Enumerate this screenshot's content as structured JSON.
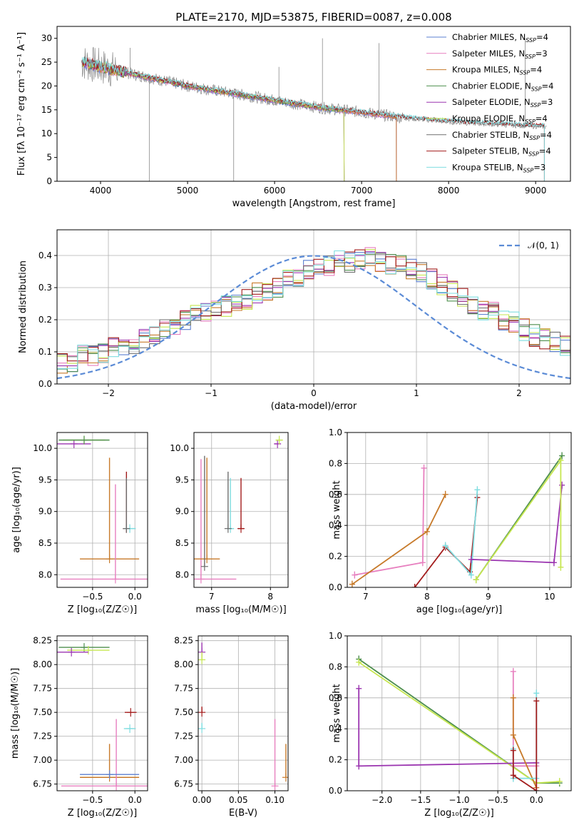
{
  "colors": {
    "chabrier_miles": "#5b7fd0",
    "salpeter_miles": "#e77fbf",
    "kroupa_miles": "#c77a2a",
    "chabrier_elodie": "#4e8f4e",
    "salpeter_elodie": "#9b35b0",
    "kroupa_elodie": "#c6e64f",
    "chabrier_stelib": "#6e6e6e",
    "salpeter_stelib": "#a31c1c",
    "kroupa_stelib": "#7fdde0",
    "gauss": "#5b8bd6",
    "grid": "#b0b0b0"
  },
  "chart_data": [
    {
      "id": "spectrum",
      "type": "line",
      "title": "PLATE=2170, MJD=53875, FIBERID=0087, z=0.008",
      "xlabel": "wavelength [Angstrom, rest frame]",
      "ylabel": "Flux [fλ 10⁻¹⁷ erg cm⁻² s⁻¹ A⁻¹]",
      "xlim": [
        3500,
        9400
      ],
      "ylim": [
        0,
        32.5
      ],
      "xticks": [
        4000,
        5000,
        6000,
        7000,
        8000,
        9000
      ],
      "yticks": [
        0,
        5,
        10,
        15,
        20,
        25,
        30
      ],
      "legend_position": "top-right",
      "legend": [
        "Chabrier MILES, N_SSP=4",
        "Salpeter MILES, N_SSP=3",
        "Kroupa MILES, N_SSP=4",
        "Chabrier ELODIE, N_SSP=4",
        "Salpeter ELODIE, N_SSP=3",
        "Kroupa ELODIE, N_SSP=4",
        "Chabrier STELIB, N_SSP=4",
        "Salpeter STELIB, N_SSP=4",
        "Kroupa STELIB, N_SSP=3"
      ],
      "continuum": {
        "x": [
          3800,
          4000,
          4500,
          5000,
          5500,
          6000,
          6500,
          7000,
          7500,
          8000,
          8500,
          9100
        ],
        "y": [
          25,
          24,
          22,
          20,
          18.5,
          17,
          15.5,
          14.5,
          13.3,
          12.5,
          12,
          11.5
        ]
      },
      "models_end_wavelength": {
        "MILES": 7400,
        "ELODIE": 6800,
        "STELIB": 9100
      },
      "data_spikes": [
        {
          "x": 4560,
          "y": 0
        },
        {
          "x": 5530,
          "y": 0
        },
        {
          "x": 6550,
          "y": 30
        },
        {
          "x": 7200,
          "y": 29
        },
        {
          "x": 6050,
          "y": 24
        },
        {
          "x": 4340,
          "y": 28
        },
        {
          "x": 8880,
          "y": 30
        }
      ]
    },
    {
      "id": "residuals",
      "type": "line",
      "xlabel": "(data-model)/error",
      "ylabel": "Normed distribution",
      "xlim": [
        -2.5,
        2.5
      ],
      "ylim": [
        0,
        0.48
      ],
      "xticks": [
        -2,
        -1,
        0,
        1,
        2
      ],
      "yticks": [
        0.0,
        0.1,
        0.2,
        0.3,
        0.4
      ],
      "legend": [
        "𝒩(0, 1)"
      ],
      "legend_position": "top-right",
      "bin_width": 0.1,
      "hist_base": [
        0.06,
        0.07,
        0.09,
        0.09,
        0.1,
        0.11,
        0.12,
        0.12,
        0.14,
        0.15,
        0.17,
        0.18,
        0.2,
        0.21,
        0.22,
        0.24,
        0.24,
        0.25,
        0.26,
        0.28,
        0.29,
        0.3,
        0.32,
        0.33,
        0.35,
        0.36,
        0.37,
        0.38,
        0.38,
        0.39,
        0.4,
        0.38,
        0.37,
        0.37,
        0.36,
        0.35,
        0.33,
        0.31,
        0.29,
        0.27,
        0.25,
        0.23,
        0.22,
        0.2,
        0.19,
        0.17,
        0.15,
        0.14,
        0.13,
        0.12,
        0.11,
        0.1,
        0.09,
        0.08,
        0.07,
        0.06,
        0.05,
        0.04,
        0.03,
        0.03
      ]
    },
    {
      "id": "age_vs_z",
      "type": "scatter",
      "xlabel": "Z [log₁₀(Z/Z☉)]",
      "ylabel": "age  [log₁₀(age/yr)]",
      "xlim": [
        -0.92,
        0.15
      ],
      "ylim": [
        7.8,
        10.25
      ],
      "xticks": [
        -0.5,
        0.0
      ],
      "yticks": [
        8.0,
        8.5,
        9.0,
        9.5,
        10.0
      ],
      "points": [
        {
          "series": "Salpeter ELODIE",
          "x": -0.72,
          "y": 10.07,
          "xerr": 0.2
        },
        {
          "series": "Kroupa ELODIE",
          "x": -0.6,
          "y": 10.13,
          "xerr": 0.25
        },
        {
          "series": "Chabrier ELODIE",
          "x": -0.6,
          "y": 10.13,
          "xerr": 0.3
        },
        {
          "series": "Kroupa MILES",
          "x": -0.3,
          "y": 8.25,
          "xerr": 0.35,
          "yerr": 1.6
        },
        {
          "series": "Salpeter MILES",
          "x": -0.23,
          "y": 7.93,
          "xerr": 0.65,
          "yerr": 1.5
        },
        {
          "series": "Salpeter STELIB",
          "x": -0.1,
          "y": 8.73,
          "xerr": 0.0,
          "yerr": 0.9
        },
        {
          "series": "Kroupa STELIB",
          "x": -0.06,
          "y": 8.73,
          "xerr": 0.07
        },
        {
          "series": "Chabrier STELIB",
          "x": -0.1,
          "y": 8.73,
          "xerr": 0.0,
          "yerr": 0.8
        }
      ]
    },
    {
      "id": "age_vs_mass",
      "type": "scatter",
      "xlabel": "mass [log₁₀(M/M☉)]",
      "ylabel": "",
      "xlim": [
        6.7,
        8.3
      ],
      "ylim": [
        7.8,
        10.25
      ],
      "xticks": [
        7,
        8
      ],
      "yticks": [
        8.0,
        8.5,
        9.0,
        9.5,
        10.0
      ],
      "points": [
        {
          "series": "Salpeter MILES",
          "x": 6.82,
          "y": 7.93,
          "xerr": 0.6,
          "yerr": 1.9
        },
        {
          "series": "Kroupa MILES",
          "x": 6.92,
          "y": 8.25,
          "xerr": 0.22,
          "yerr": 1.6
        },
        {
          "series": "Chabrier STELIB",
          "x": 6.88,
          "y": 8.13,
          "xerr": 0.0,
          "yerr": 1.75
        },
        {
          "series": "Kroupa STELIB",
          "x": 7.32,
          "y": 8.73,
          "xerr": 0.06,
          "yerr": 0.8
        },
        {
          "series": "Chabrier STELIB 2",
          "x": 7.28,
          "y": 8.73,
          "xerr": 0.0,
          "yerr": 0.9
        },
        {
          "series": "Salpeter STELIB",
          "x": 7.5,
          "y": 8.73,
          "xerr": 0.05,
          "yerr": 0.8
        },
        {
          "series": "Salpeter ELODIE",
          "x": 8.12,
          "y": 10.07,
          "xerr": 0.05
        },
        {
          "series": "Kroupa ELODIE",
          "x": 8.15,
          "y": 10.13,
          "xerr": 0.06
        }
      ]
    },
    {
      "id": "weight_vs_age",
      "type": "line",
      "xlabel": "age  [log₁₀(age/yr)]",
      "ylabel": "mass weight",
      "xlim": [
        6.7,
        10.35
      ],
      "ylim": [
        0,
        1.0
      ],
      "xticks": [
        7,
        8,
        9,
        10
      ],
      "yticks": [
        0.0,
        0.2,
        0.4,
        0.6,
        0.8,
        1.0
      ],
      "series": [
        {
          "name": "Salpeter MILES",
          "x": [
            6.82,
            7.93,
            7.95
          ],
          "y": [
            0.08,
            0.16,
            0.77
          ]
        },
        {
          "name": "Kroupa MILES",
          "x": [
            6.78,
            8.0,
            8.3
          ],
          "y": [
            0.02,
            0.36,
            0.6
          ]
        },
        {
          "name": "Salpeter STELIB",
          "x": [
            7.8,
            8.3,
            8.7,
            8.82
          ],
          "y": [
            0.0,
            0.26,
            0.1,
            0.58
          ]
        },
        {
          "name": "Kroupa STELIB",
          "x": [
            8.3,
            8.72,
            8.82
          ],
          "y": [
            0.27,
            0.08,
            0.63
          ]
        },
        {
          "name": "Salpeter ELODIE",
          "x": [
            8.72,
            10.07,
            10.2
          ],
          "y": [
            0.18,
            0.16,
            0.66
          ]
        },
        {
          "name": "Chabrier ELODIE",
          "x": [
            8.8,
            10.2
          ],
          "y": [
            0.05,
            0.85
          ]
        },
        {
          "name": "Kroupa ELODIE",
          "x": [
            8.8,
            10.18,
            10.18
          ],
          "y": [
            0.05,
            0.82,
            0.13
          ]
        }
      ]
    },
    {
      "id": "mass_vs_z",
      "type": "scatter",
      "xlabel": "Z [log₁₀(Z/Z☉)]",
      "ylabel": "mass [log₁₀(M/M☉)]",
      "xlim": [
        -0.92,
        0.15
      ],
      "ylim": [
        6.68,
        8.3
      ],
      "xticks": [
        -0.5,
        0.0
      ],
      "yticks": [
        6.75,
        7.0,
        7.25,
        7.5,
        7.75,
        8.0,
        8.25
      ],
      "points": [
        {
          "series": "Chabrier ELODIE",
          "x": -0.6,
          "y": 8.18,
          "xerr": 0.3
        },
        {
          "series": "Kroupa ELODIE",
          "x": -0.55,
          "y": 8.15,
          "xerr": 0.25
        },
        {
          "series": "Salpeter ELODIE",
          "x": -0.75,
          "y": 8.13,
          "xerr": 0.2
        },
        {
          "series": "Salpeter STELIB",
          "x": -0.05,
          "y": 7.5,
          "xerr": 0.07
        },
        {
          "series": "Kroupa STELIB",
          "x": -0.06,
          "y": 7.33,
          "xerr": 0.07
        },
        {
          "series": "Kroupa MILES",
          "x": -0.3,
          "y": 6.82,
          "xerr": 0.35,
          "yerr": 0.35
        },
        {
          "series": "Salpeter MILES",
          "x": -0.22,
          "y": 6.73,
          "xerr": 0.65,
          "yerr": 0.7
        },
        {
          "series": "Chabrier MILES",
          "x": -0.3,
          "y": 6.85,
          "xerr": 0.35
        }
      ]
    },
    {
      "id": "mass_vs_ebv",
      "type": "scatter",
      "xlabel": "E(B-V)",
      "ylabel": "",
      "xlim": [
        -0.005,
        0.118
      ],
      "ylim": [
        6.68,
        8.3
      ],
      "xticks": [
        0.0,
        0.05,
        0.1
      ],
      "yticks": [
        6.75,
        7.0,
        7.25,
        7.5,
        7.75,
        8.0,
        8.25
      ],
      "points": [
        {
          "series": "Salpeter ELODIE",
          "x": 0.0,
          "y": 8.13,
          "yerr": 0.1
        },
        {
          "series": "Kroupa ELODIE",
          "x": 0.0,
          "y": 8.05,
          "yerr": 0.08
        },
        {
          "series": "Salpeter STELIB",
          "x": 0.0,
          "y": 7.5,
          "yerr": 0.06
        },
        {
          "series": "Kroupa STELIB",
          "x": 0.0,
          "y": 7.33,
          "yerr": 0.06
        },
        {
          "series": "Salpeter MILES",
          "x": 0.1,
          "y": 6.73,
          "yerr": 0.7
        },
        {
          "series": "Kroupa MILES",
          "x": 0.115,
          "y": 6.82,
          "yerr": 0.35
        }
      ]
    },
    {
      "id": "weight_vs_z",
      "type": "line",
      "xlabel": "Z [log₁₀(Z/Z☉)]",
      "ylabel": "mass weight",
      "xlim": [
        -2.45,
        0.45
      ],
      "ylim": [
        0,
        1.0
      ],
      "xticks": [
        -2.0,
        -1.5,
        -1.0,
        -0.5,
        0.0
      ],
      "yticks": [
        0.0,
        0.2,
        0.4,
        0.6,
        0.8,
        1.0
      ],
      "series": [
        {
          "name": "Chabrier ELODIE",
          "x": [
            -2.3,
            0.0,
            0.3
          ],
          "y": [
            0.85,
            0.05,
            0.05
          ]
        },
        {
          "name": "Kroupa ELODIE",
          "x": [
            -2.3,
            0.0,
            0.3
          ],
          "y": [
            0.83,
            0.05,
            0.06
          ]
        },
        {
          "name": "Salpeter ELODIE",
          "x": [
            -2.3,
            -2.3,
            0.0
          ],
          "y": [
            0.66,
            0.16,
            0.18
          ]
        },
        {
          "name": "Salpeter MILES",
          "x": [
            -0.3,
            -0.3,
            0.0
          ],
          "y": [
            0.77,
            0.16,
            0.16
          ]
        },
        {
          "name": "Kroupa MILES",
          "x": [
            -0.3,
            -0.3,
            0.0
          ],
          "y": [
            0.6,
            0.36,
            0.02
          ]
        },
        {
          "name": "Kroupa STELIB",
          "x": [
            -0.3,
            -0.3,
            0.0,
            0.0
          ],
          "y": [
            0.27,
            0.08,
            0.08,
            0.63
          ]
        },
        {
          "name": "Salpeter STELIB",
          "x": [
            -0.3,
            -0.3,
            0.0,
            0.0
          ],
          "y": [
            0.26,
            0.1,
            0.0,
            0.58
          ]
        }
      ]
    }
  ]
}
